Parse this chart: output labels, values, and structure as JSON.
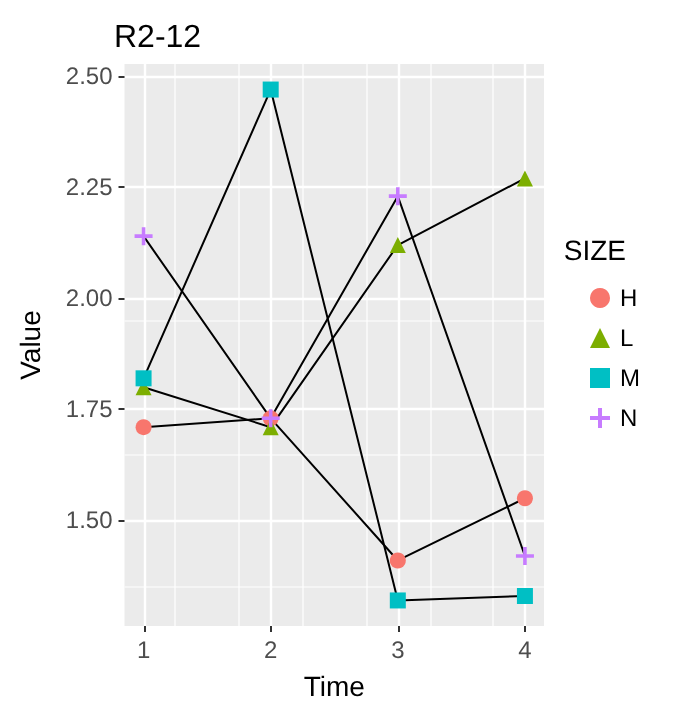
{
  "chart_data": {
    "type": "line",
    "title": "R2-12",
    "xlabel": "Time",
    "ylabel": "Value",
    "legend_title": "SIZE",
    "legend": "right",
    "grid": true,
    "line_style": "solid",
    "x": [
      1,
      2,
      3,
      4
    ],
    "xlim": [
      0.85,
      4.15
    ],
    "xticks": [
      1,
      2,
      3,
      4
    ],
    "ylim": [
      1.2625,
      2.5275
    ],
    "yticks": [
      {
        "value": 1.5,
        "label": "1.50"
      },
      {
        "value": 1.75,
        "label": "1.75"
      },
      {
        "value": 2.0,
        "label": "2.00"
      },
      {
        "value": 2.25,
        "label": "2.25"
      },
      {
        "value": 2.5,
        "label": "2.50"
      }
    ],
    "series": [
      {
        "name": "H",
        "color": "#f8766d",
        "marker": "circle",
        "values": [
          1.71,
          1.73,
          1.41,
          1.55
        ]
      },
      {
        "name": "L",
        "color": "#7cae00",
        "marker": "triangle",
        "values": [
          1.8,
          1.71,
          2.12,
          2.27
        ]
      },
      {
        "name": "M",
        "color": "#00bfc4",
        "marker": "square",
        "values": [
          1.82,
          2.47,
          1.32,
          1.33
        ]
      },
      {
        "name": "N",
        "color": "#c77cff",
        "marker": "cross",
        "values": [
          2.14,
          1.73,
          2.23,
          1.42
        ]
      }
    ]
  }
}
